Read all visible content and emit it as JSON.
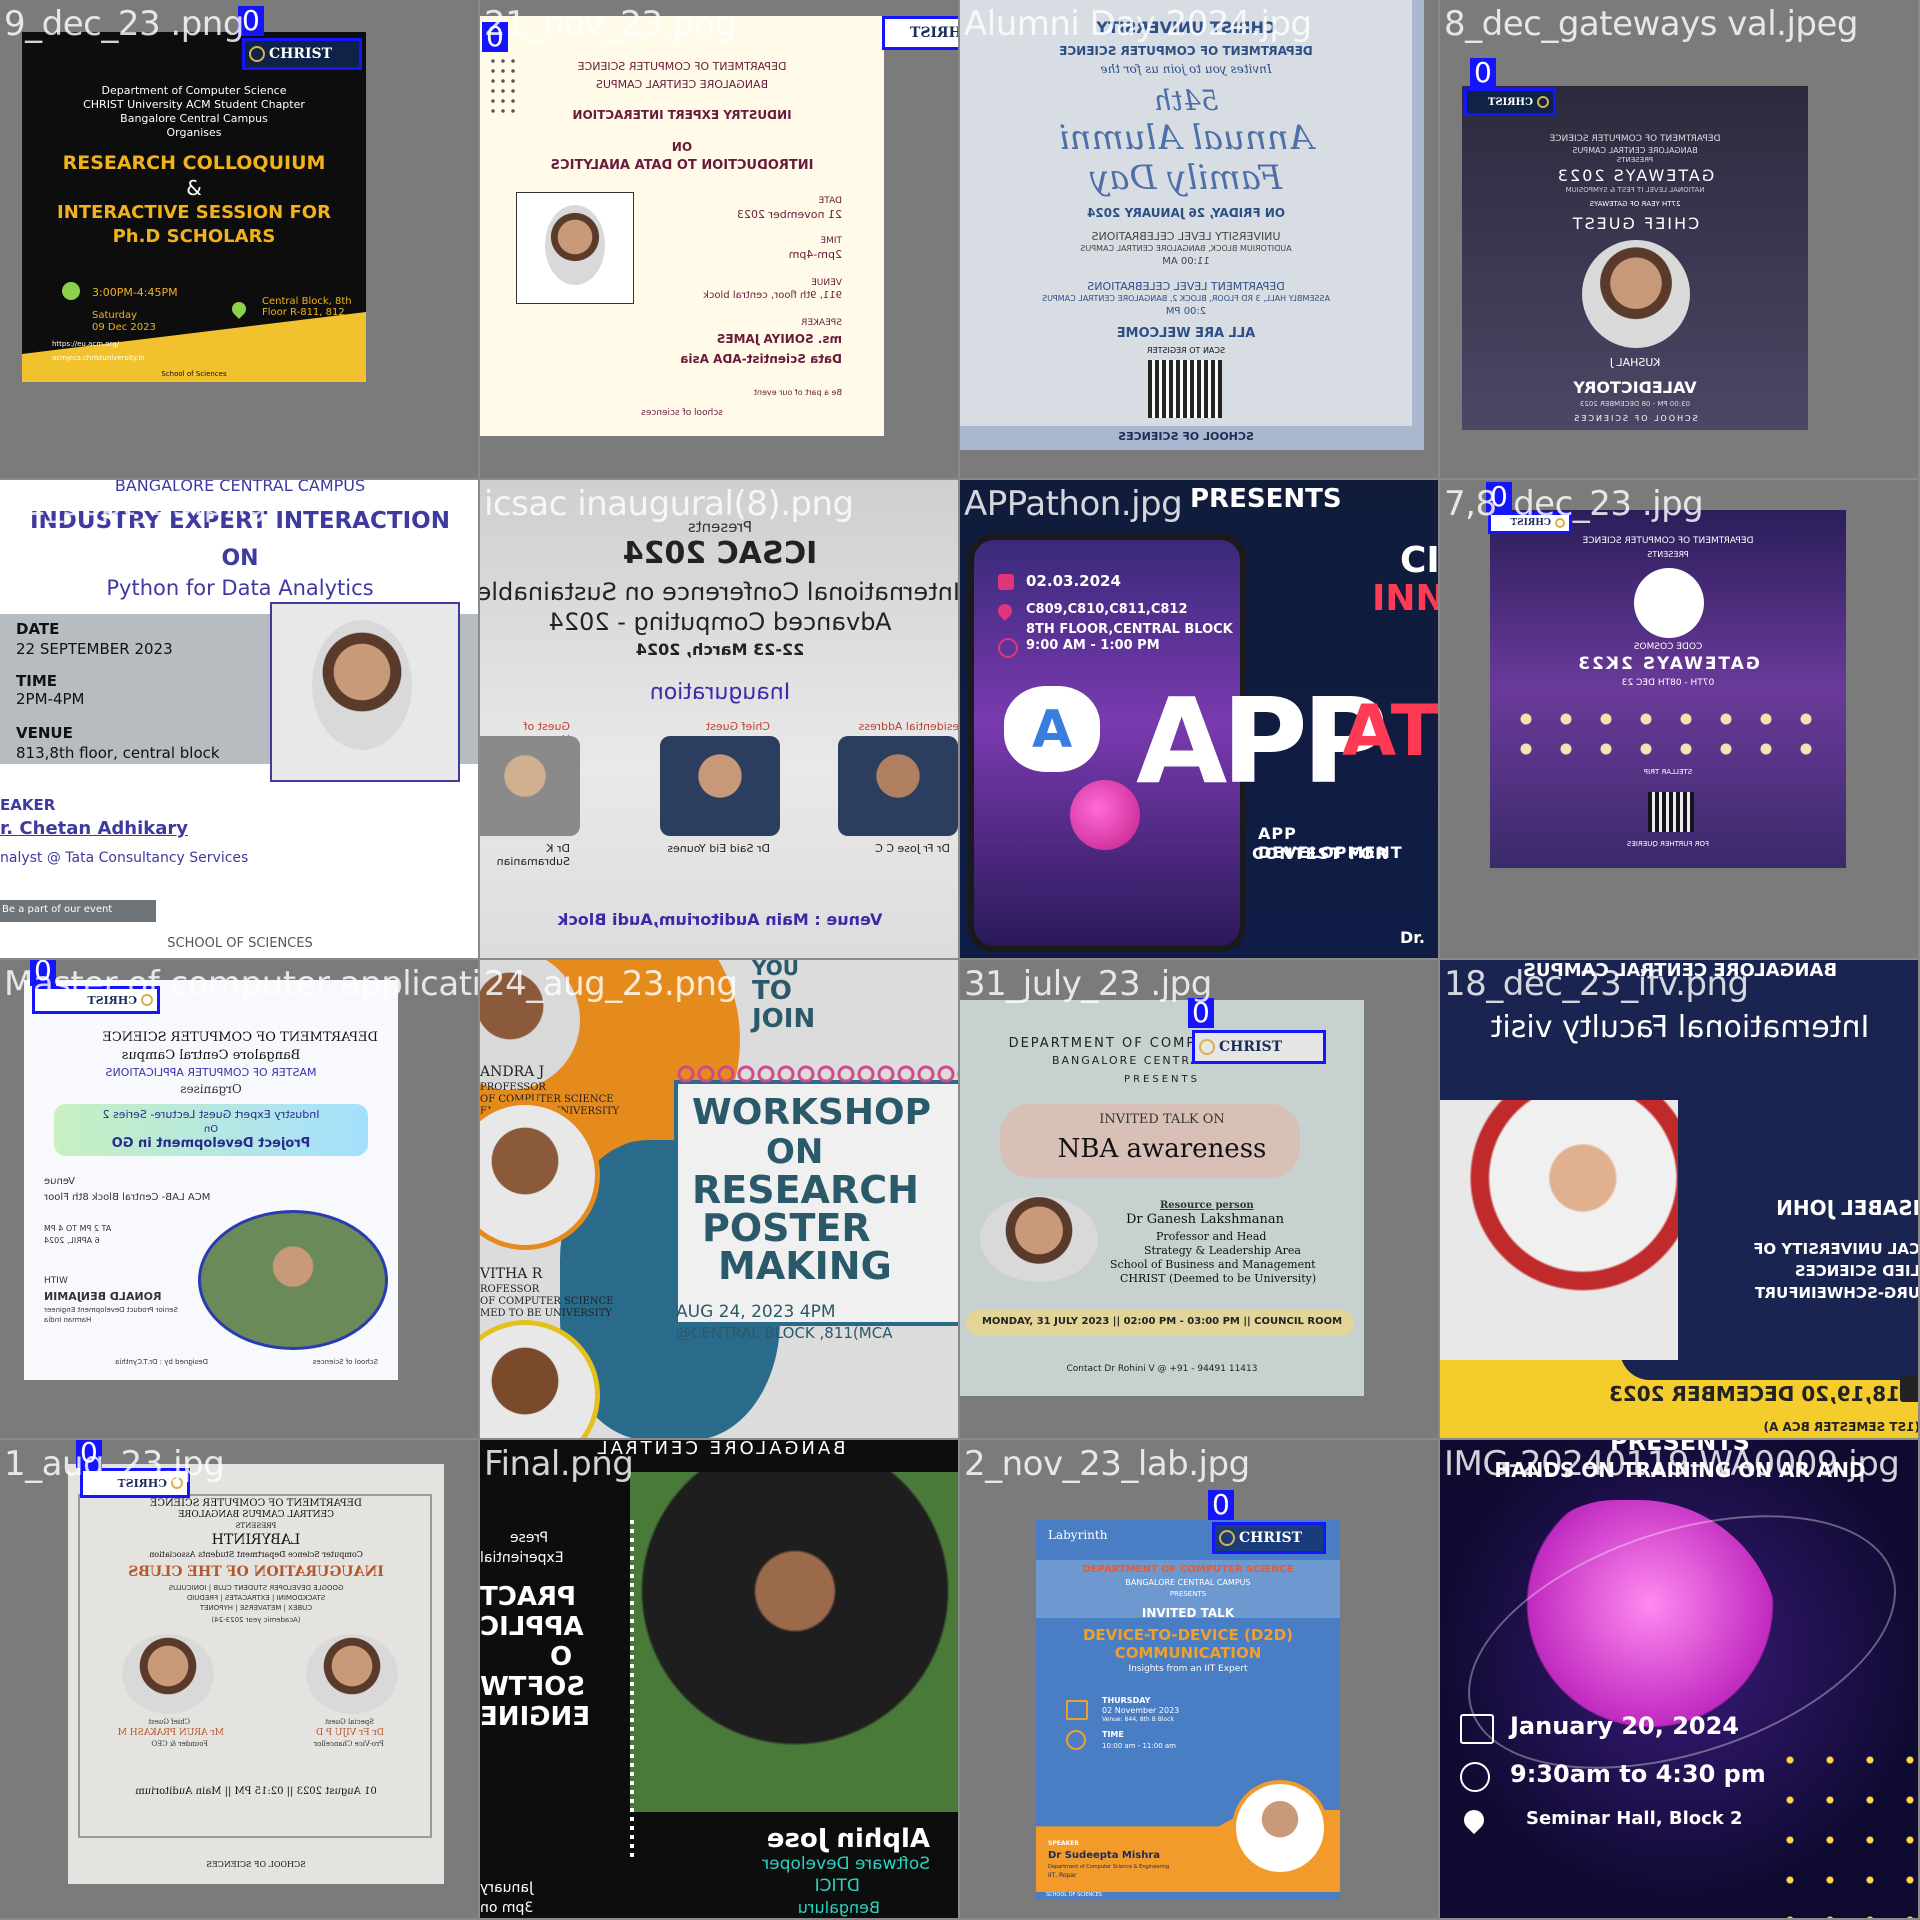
{
  "tiles": [
    {
      "filename": "9_dec_23 .png",
      "tag": "0",
      "lines": [
        "Department of Computer Science",
        "CHRIST University ACM Student Chapter",
        "Bangalore Central Campus",
        "Organises",
        "RESEARCH COLLOQUIUM",
        "&",
        "INTERACTIVE SESSION FOR",
        "Ph.D SCHOLARS",
        "3:00PM-4:45PM",
        "Saturday",
        "09 Dec 2023",
        "Central Block, 8th Floor R-811, 812",
        "https://eu.acm.org/",
        "acmjecs.christuniversity.in",
        "School of Sciences"
      ]
    },
    {
      "filename": "21_nov_23.png",
      "tag": "0",
      "lines": [
        "DEPARTMENT OF COMPUTER SCIENCE",
        "BANGALORE CENTRAL CAMPUS",
        "INDUSTRY EXPERT INTERACTION",
        "ON",
        "INTRODUCTION TO DATA ANALYTICS",
        "DATE",
        "21 november 2023",
        "TIME",
        "2pm-4pm",
        "VENUE",
        "911, 9th floor, central block",
        "SPEAKER",
        "ms. SONIYA JAMES",
        "Data Scientist-ADA Asia",
        "Be a part of our event",
        "school of sciences"
      ]
    },
    {
      "filename": "Alumni Day 2024.jpg",
      "lines": [
        "CHRIST UNIVERSITY",
        "DEPARTMENT OF COMPUTER SCIENCE",
        "Invites you to join us for the",
        "54th",
        "Annual Alumni",
        "Family Day",
        "ON FRIDAY, 26 JANUARY 2024",
        "UNIVERSITY LEVEL CELEBRATIONS",
        "AUDITORIUM BLOCK, BANGALORE CENTRAL CAMPUS",
        "11:00 AM",
        "DEPARTMENT LEVEL CELEBRATIONS",
        "ASSEMBLY HALL, 3 RD FLOOR, BLOCK 2, BANGALORE CENTRAL CAMPUS",
        "2:00 PM",
        "ALL ARE WELCOME",
        "SCAN TO REGISTER",
        "SCHOOL OF SCIENCES"
      ]
    },
    {
      "filename": "8_dec_gateways val.jpeg",
      "tag": "0",
      "lines": [
        "DEPARTMENT OF COMPUTER SCIENCE",
        "BANGALORE CENTRAL CAMPUS",
        "PRESENTS",
        "GATEWAYS 2023",
        "NATIONAL LEVEL IT FEST & SYMPOSIUM",
        "27TH YEAR OF GATEWAYS",
        "CHIEF GUEST",
        "KUSHAL J",
        "VALEDICTORY",
        "03:00 PM - 08 DECEMBER 2023",
        "SCHOOL OF SCIENCES"
      ]
    },
    {
      "filename": "22_sept_23.png",
      "lines": [
        "BANGALORE CENTRAL CAMPUS",
        "INDUSTRY EXPERT INTERACTION",
        "ON",
        "Python for Data Analytics",
        "DATE",
        "22 SEPTEMBER 2023",
        "TIME",
        "2PM-4PM",
        "VENUE",
        "813,8th floor, central block",
        "EAKER",
        "r. Chetan Adhikary",
        "nalyst @ Tata Consultancy Services",
        "Be a part of our event",
        "SCHOOL OF SCIENCES"
      ]
    },
    {
      "filename": "icsac inaugural(8).png",
      "lines": [
        "Presents",
        "ICSAC 2024",
        "International Conference on Sustainable",
        "Advanced Computing - 2024",
        "22-23 March, 2024",
        "Inauguration",
        "Presidential Address",
        "Chief Guest",
        "Guest of Honour",
        "Dr Fr Jose C C",
        "Dr Said Eid Younes",
        "Dr K Subramanian",
        "Venue : Main Auditorium,Audi Block"
      ]
    },
    {
      "filename": "APPathon.jpg",
      "lines": [
        "PRESENTS",
        "02.03.2024",
        "C809,C810,C811,C812",
        "8TH FLOOR,CENTRAL BLOCK",
        "9:00 AM - 1:00 PM",
        "APP",
        "ATHON",
        "CI",
        "INNO",
        "APP DEVELOPMENT",
        "CONTEST FOR",
        "Dr."
      ]
    },
    {
      "filename": "7,8_dec_23 .jpg",
      "tag": "0",
      "lines": [
        "DEPARTMENT OF COMPUTER SCIENCE",
        "PRESENTS",
        "CODE COSMOS",
        "GATEWAYS 2K23",
        "07TH - 08TH DEC 23",
        "STELLAR TRIP",
        "FOR FURTHER QUERIES"
      ]
    },
    {
      "filename": "Master of computer applications.png",
      "tag": "0",
      "lines": [
        "DEPARTMENT OF COMPUTER SCIENCE",
        "Bangalore Central Campus",
        "MASTER OF COMPUTER APPLICATIONS",
        "Organises",
        "Industry Expert Guest Lecture- Series 2",
        "On",
        "Project Development in GO",
        "Venue",
        "MCA LAB- Central Block 8th Floor",
        "AT 2 PM TO 4 PM",
        "6 APRIL, 2024",
        "WITH",
        "RONALD BENJAMIN",
        "Senior Product Development Engineer",
        "Harman India",
        "Designed by : Dr.T.Cynthia",
        "School of Sciences"
      ]
    },
    {
      "filename": "24_aug_23.png",
      "lines": [
        "YOU",
        "TO",
        "JOIN",
        "ANDRA J",
        "PROFESSOR",
        "OF COMPUTER SCIENCE",
        "EMED TO BE UNIVERSITY",
        "VITHA R",
        "ROFESSOR",
        "OF COMPUTER SCIENCE",
        "MED TO BE UNIVERSITY",
        "WORKSHOP",
        "ON",
        "RESEARCH",
        "POSTER",
        "MAKING",
        "AUG 24, 2023 4PM",
        "@CENTRAL BLOCK ,811(MCA"
      ]
    },
    {
      "filename": "31_july_23 .jpg",
      "tag": "0",
      "lines": [
        "DEPARTMENT OF COMPUTER SCIENCE",
        "BANGALORE CENTRAL CAMPUS",
        "PRESENTS",
        "INVITED TALK ON",
        "NBA awareness",
        "Resource person",
        "Dr Ganesh Lakshmanan",
        "Professor and Head",
        "Strategy & Leadership Area",
        "School of Business and Management",
        "CHRIST (Deemed to be University)",
        "MONDAY, 31 JULY 2023 || 02:00 PM - 03:00 PM || COUNCIL ROOM",
        "Contact Dr Rohini V @ +91 - 94491 11413"
      ]
    },
    {
      "filename": "18_dec_23_ifv.png",
      "lines": [
        "BANGALORE CENTRAL CAMPUS",
        "International Faculty visit",
        "ISABEL JOHN",
        "CAL UNIVERSITY OF",
        "LIED SCIENCES",
        "URG-SCHWEINFURT",
        "18,19,20 DECEMBER 2023",
        "(1ST SEMESTER BCA A)"
      ]
    },
    {
      "filename": "1_aug_23.jpg",
      "tag": "0",
      "lines": [
        "DEPARTMENT OF COMPUTER SCIENCE",
        "CENTRAL CAMPUS BANGALORE",
        "PRESENTS",
        "LABYRINTH",
        "Computer Science Department Students Association",
        "INAUGURATION OF THE CLUBS",
        "GOOGLE DEVELOPER STUDENT CLUB | IONICULUS",
        "STACKDOMINI | EXTRACATES | FREDUID",
        "CUBEX | METAVERSE | HYPONET",
        "(Academic year 2023-24)",
        "Chief Guest",
        "Special Guest",
        "Mr ARUN PRAKASH M",
        "Dr Fr VIJU P D",
        "Founder & CEO",
        "Pro-Vice Chancellor",
        "01 August 2023 || 02:15 PM || Main Auditorium",
        "SCHOOL OF SCIENCES"
      ]
    },
    {
      "filename": "Final.png",
      "lines": [
        "BANGALORE CENTRAL",
        "Prese",
        "Experiential",
        "PRACT",
        "APPLIC",
        "O",
        "SOFTW",
        "ENGINE",
        "Alphin Jose",
        "Software Developer",
        "DTICI",
        "Bengaluru",
        "January",
        "3pm on"
      ]
    },
    {
      "filename": "2_nov_23_lab.jpg",
      "tag": "0",
      "lines": [
        "Labyrinth",
        "DEPARTMENT OF COMPUTER SCIENCE",
        "BANGALORE CENTRAL CAMPUS",
        "PRESENTS",
        "INVITED TALK",
        "DEVICE-TO-DEVICE (D2D)",
        "COMMUNICATION",
        "Insights from an IIT Expert",
        "THURSDAY",
        "02 November 2023",
        "Venue: 844, 8th B Block",
        "TIME",
        "10:00 am - 11:00 am",
        "SPEAKER",
        "Dr Sudeepta Mishra",
        "Department of Computer Science & Engineering",
        "IIT, Ropar",
        "SCHOOL OF SCIENCES"
      ]
    },
    {
      "filename": "IMG-20240119-WA0009.jpg",
      "lines": [
        "PRESENTS",
        "HANDS ON TRAINING ON AR AND",
        "January 20, 2024",
        "9:30am to 4:30 pm",
        "Seminar Hall, Block 2"
      ]
    }
  ],
  "logo_text": "CHRIST",
  "colors": {
    "box": "#1414ff",
    "tile_bg": "#7b7b7b"
  }
}
